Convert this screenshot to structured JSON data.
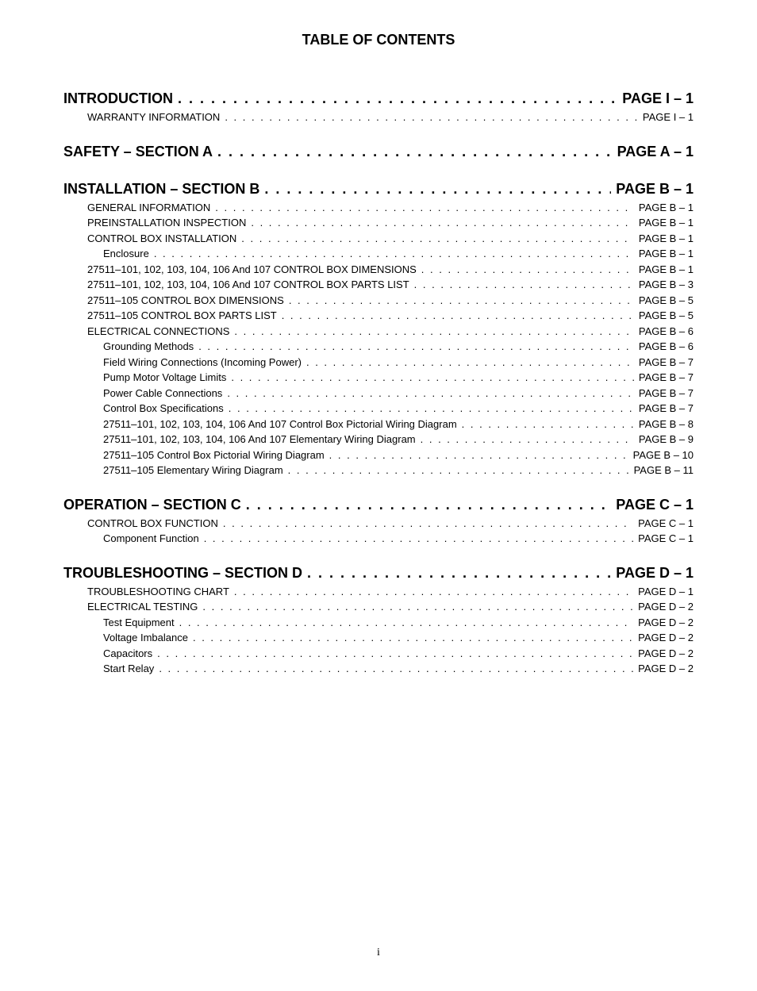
{
  "page_title": "TABLE OF CONTENTS",
  "page_number": "i",
  "dots": ". . . . . . . . . . . . . . . . . . . . . . . . . . . . . . . . . . . . . . . . . . . . . . . . . . . . . . . . . . . . . . . . . . . . . . . . . . . . . . . . . . . . . . . . . . . . . . . . . . . . . . . . . . . . . . . . . . . . . . . . . . . . . .",
  "sections": [
    {
      "entries": [
        {
          "level": 0,
          "title": "INTRODUCTION",
          "page": "PAGE I – 1"
        },
        {
          "level": 1,
          "title": "WARRANTY INFORMATION",
          "page": "PAGE I – 1"
        }
      ]
    },
    {
      "entries": [
        {
          "level": 0,
          "title": "SAFETY – SECTION A",
          "page": "PAGE A – 1"
        }
      ]
    },
    {
      "entries": [
        {
          "level": 0,
          "title": "INSTALLATION – SECTION B",
          "page": "PAGE B – 1"
        },
        {
          "level": 1,
          "title": "GENERAL INFORMATION",
          "page": "PAGE B – 1"
        },
        {
          "level": 1,
          "title": "PREINSTALLATION INSPECTION",
          "page": "PAGE B – 1"
        },
        {
          "level": 1,
          "title": "CONTROL BOX INSTALLATION",
          "page": "PAGE B – 1"
        },
        {
          "level": 2,
          "title": "Enclosure",
          "page": "PAGE B – 1"
        },
        {
          "level": 1,
          "title": "27511–101, 102, 103, 104, 106 And 107 CONTROL BOX DIMENSIONS",
          "page": "PAGE B – 1"
        },
        {
          "level": 1,
          "title": "27511–101, 102, 103, 104, 106 And 107 CONTROL BOX PARTS LIST",
          "page": "PAGE B – 3"
        },
        {
          "level": 1,
          "title": "27511–105 CONTROL BOX DIMENSIONS",
          "page": "PAGE B – 5"
        },
        {
          "level": 1,
          "title": "27511–105 CONTROL BOX PARTS LIST",
          "page": "PAGE B – 5"
        },
        {
          "level": 1,
          "title": "ELECTRICAL CONNECTIONS",
          "page": "PAGE B – 6"
        },
        {
          "level": 2,
          "title": "Grounding Methods",
          "page": "PAGE B – 6"
        },
        {
          "level": 2,
          "title": "Field Wiring Connections (Incoming Power)",
          "page": "PAGE B – 7"
        },
        {
          "level": 2,
          "title": "Pump Motor Voltage Limits",
          "page": "PAGE B – 7"
        },
        {
          "level": 2,
          "title": "Power Cable Connections",
          "page": "PAGE B – 7"
        },
        {
          "level": 2,
          "title": "Control Box Specifications",
          "page": "PAGE B – 7"
        },
        {
          "level": 2,
          "title": "27511–101, 102, 103, 104, 106 And 107  Control Box Pictorial Wiring Diagram",
          "page": "PAGE B – 8"
        },
        {
          "level": 2,
          "title": "27511–101, 102, 103, 104, 106 And 107 Elementary Wiring Diagram",
          "page": "PAGE B – 9"
        },
        {
          "level": 2,
          "title": "27511–105 Control Box Pictorial Wiring Diagram",
          "page": "PAGE B – 10"
        },
        {
          "level": 2,
          "title": "27511–105 Elementary Wiring Diagram",
          "page": "PAGE B – 11"
        }
      ]
    },
    {
      "entries": [
        {
          "level": 0,
          "title": "OPERATION – SECTION C",
          "page": "PAGE C – 1"
        },
        {
          "level": 1,
          "title": "CONTROL BOX FUNCTION",
          "page": "PAGE C – 1"
        },
        {
          "level": 2,
          "title": "Component Function",
          "page": "PAGE C – 1"
        }
      ]
    },
    {
      "entries": [
        {
          "level": 0,
          "title": "TROUBLESHOOTING – SECTION D",
          "page": "PAGE D – 1"
        },
        {
          "level": 1,
          "title": "TROUBLESHOOTING CHART",
          "page": "PAGE D – 1"
        },
        {
          "level": 1,
          "title": "ELECTRICAL TESTING",
          "page": "PAGE D – 2"
        },
        {
          "level": 2,
          "title": "Test Equipment",
          "page": "PAGE D – 2"
        },
        {
          "level": 2,
          "title": "Voltage Imbalance",
          "page": "PAGE D – 2"
        },
        {
          "level": 2,
          "title": "Capacitors",
          "page": "PAGE D – 2"
        },
        {
          "level": 2,
          "title": "Start Relay",
          "page": "PAGE D – 2"
        }
      ]
    }
  ]
}
